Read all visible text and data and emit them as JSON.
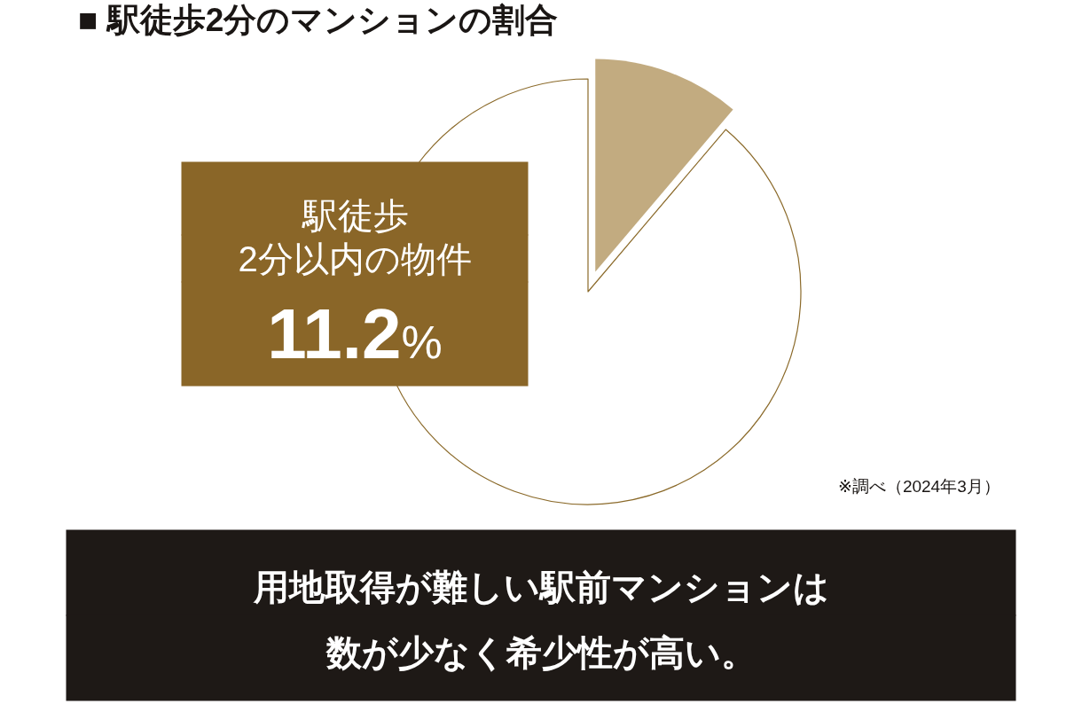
{
  "chart_data": {
    "type": "pie",
    "title": "■ 駅徒歩2分のマンションの割合",
    "categories": [
      null,
      null
    ],
    "values": [
      11.2,
      88.8
    ],
    "colors": [
      "#c2ab80",
      "#ffffff"
    ],
    "legend": false,
    "annotations": [
      "駅徒歩",
      "2分以内の物件",
      "11.2%",
      "用地取得が難しい駅前マンションは",
      "数が少なく希少性が高い。",
      "※調べ（2024年3月）"
    ]
  }
}
